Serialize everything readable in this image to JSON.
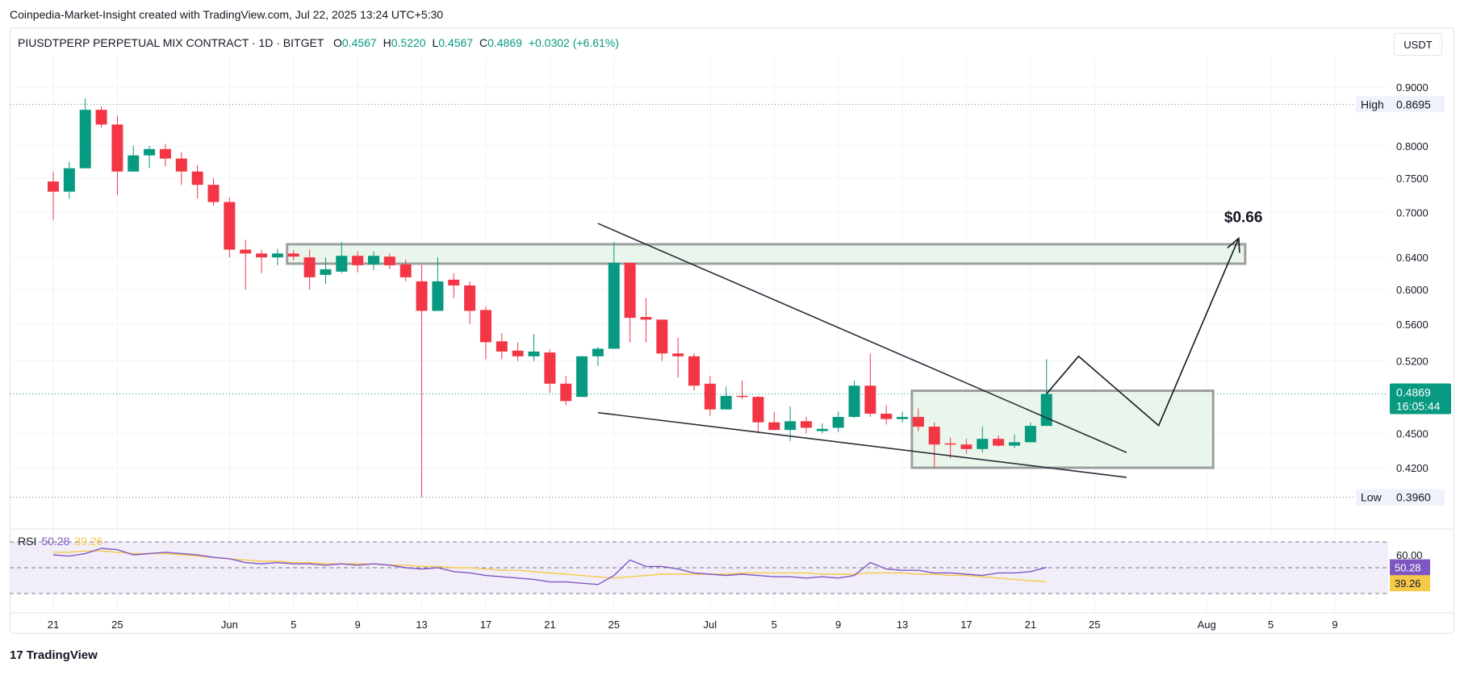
{
  "header": {
    "attribution": "Coinpedia-Market-Insight created with TradingView.com, Jul 22, 2025 13:24 UTC+5:30"
  },
  "legend": {
    "symbol": "PIUSDTPERP PERPETUAL MIX CONTRACT · 1D · BITGET",
    "o_label": "O",
    "o_value": "0.4567",
    "h_label": "H",
    "h_value": "0.5220",
    "l_label": "L",
    "l_value": "0.4567",
    "c_label": "C",
    "c_value": "0.4869",
    "change": "+0.0302 (+6.61%)"
  },
  "currency": "USDT",
  "rsi": {
    "label": "RSI",
    "value": "50.28",
    "ma_value": "39.26"
  },
  "footer": {
    "brand": "TradingView",
    "logo": "17"
  },
  "colors": {
    "up": "#089981",
    "down": "#f23645",
    "rsi": "#7e57c2",
    "rsi_ma": "#f7c948",
    "zone": "#e8f5e9",
    "zone_border": "#9e9e9e"
  },
  "chart_data": {
    "type": "candlestick",
    "interval": "1D",
    "ylim": [
      0.37,
      0.96
    ],
    "y_ticks": [
      "0.9000",
      "0.8000",
      "0.7500",
      "0.7000",
      "0.6400",
      "0.6000",
      "0.5600",
      "0.5200",
      "0.4500",
      "0.4200"
    ],
    "x_ticks": [
      "21",
      "25",
      "Jun",
      "5",
      "9",
      "13",
      "17",
      "21",
      "25",
      "Jul",
      "5",
      "9",
      "13",
      "17",
      "21",
      "25",
      "Aug",
      "5",
      "9"
    ],
    "x_tick_day_index": [
      0,
      4,
      11,
      15,
      19,
      23,
      27,
      31,
      35,
      41,
      45,
      49,
      53,
      57,
      61,
      65,
      72,
      76,
      80
    ],
    "candles": [
      {
        "o": 0.745,
        "h": 0.76,
        "l": 0.69,
        "c": 0.73
      },
      {
        "o": 0.73,
        "h": 0.775,
        "l": 0.72,
        "c": 0.765
      },
      {
        "o": 0.765,
        "h": 0.88,
        "l": 0.765,
        "c": 0.86
      },
      {
        "o": 0.86,
        "h": 0.866,
        "l": 0.83,
        "c": 0.835
      },
      {
        "o": 0.835,
        "h": 0.85,
        "l": 0.725,
        "c": 0.76
      },
      {
        "o": 0.76,
        "h": 0.8,
        "l": 0.76,
        "c": 0.785
      },
      {
        "o": 0.785,
        "h": 0.8,
        "l": 0.765,
        "c": 0.795
      },
      {
        "o": 0.795,
        "h": 0.803,
        "l": 0.768,
        "c": 0.78
      },
      {
        "o": 0.78,
        "h": 0.79,
        "l": 0.74,
        "c": 0.76
      },
      {
        "o": 0.76,
        "h": 0.77,
        "l": 0.72,
        "c": 0.74
      },
      {
        "o": 0.74,
        "h": 0.75,
        "l": 0.71,
        "c": 0.715
      },
      {
        "o": 0.715,
        "h": 0.722,
        "l": 0.64,
        "c": 0.65
      },
      {
        "o": 0.65,
        "h": 0.663,
        "l": 0.6,
        "c": 0.645
      },
      {
        "o": 0.645,
        "h": 0.65,
        "l": 0.62,
        "c": 0.64
      },
      {
        "o": 0.64,
        "h": 0.651,
        "l": 0.63,
        "c": 0.645
      },
      {
        "o": 0.645,
        "h": 0.65,
        "l": 0.636,
        "c": 0.641
      },
      {
        "o": 0.64,
        "h": 0.65,
        "l": 0.6,
        "c": 0.615
      },
      {
        "o": 0.618,
        "h": 0.64,
        "l": 0.607,
        "c": 0.625
      },
      {
        "o": 0.622,
        "h": 0.66,
        "l": 0.62,
        "c": 0.642
      },
      {
        "o": 0.642,
        "h": 0.648,
        "l": 0.621,
        "c": 0.63
      },
      {
        "o": 0.631,
        "h": 0.648,
        "l": 0.624,
        "c": 0.642
      },
      {
        "o": 0.641,
        "h": 0.645,
        "l": 0.625,
        "c": 0.63
      },
      {
        "o": 0.631,
        "h": 0.637,
        "l": 0.61,
        "c": 0.615
      },
      {
        "o": 0.61,
        "h": 0.63,
        "l": 0.396,
        "c": 0.575
      },
      {
        "o": 0.575,
        "h": 0.64,
        "l": 0.575,
        "c": 0.61
      },
      {
        "o": 0.612,
        "h": 0.62,
        "l": 0.59,
        "c": 0.605
      },
      {
        "o": 0.605,
        "h": 0.61,
        "l": 0.56,
        "c": 0.575
      },
      {
        "o": 0.576,
        "h": 0.58,
        "l": 0.522,
        "c": 0.54
      },
      {
        "o": 0.541,
        "h": 0.55,
        "l": 0.522,
        "c": 0.53
      },
      {
        "o": 0.531,
        "h": 0.54,
        "l": 0.52,
        "c": 0.525
      },
      {
        "o": 0.525,
        "h": 0.549,
        "l": 0.52,
        "c": 0.53
      },
      {
        "o": 0.529,
        "h": 0.532,
        "l": 0.488,
        "c": 0.497
      },
      {
        "o": 0.497,
        "h": 0.505,
        "l": 0.476,
        "c": 0.48
      },
      {
        "o": 0.484,
        "h": 0.525,
        "l": 0.484,
        "c": 0.525
      },
      {
        "o": 0.525,
        "h": 0.535,
        "l": 0.515,
        "c": 0.533
      },
      {
        "o": 0.533,
        "h": 0.66,
        "l": 0.533,
        "c": 0.633
      },
      {
        "o": 0.633,
        "h": 0.633,
        "l": 0.54,
        "c": 0.567
      },
      {
        "o": 0.568,
        "h": 0.59,
        "l": 0.54,
        "c": 0.565
      },
      {
        "o": 0.565,
        "h": 0.565,
        "l": 0.52,
        "c": 0.528
      },
      {
        "o": 0.528,
        "h": 0.545,
        "l": 0.503,
        "c": 0.525
      },
      {
        "o": 0.525,
        "h": 0.528,
        "l": 0.49,
        "c": 0.495
      },
      {
        "o": 0.497,
        "h": 0.505,
        "l": 0.466,
        "c": 0.472
      },
      {
        "o": 0.472,
        "h": 0.494,
        "l": 0.472,
        "c": 0.485
      },
      {
        "o": 0.485,
        "h": 0.5,
        "l": 0.482,
        "c": 0.484
      },
      {
        "o": 0.484,
        "h": 0.485,
        "l": 0.45,
        "c": 0.46
      },
      {
        "o": 0.46,
        "h": 0.47,
        "l": 0.453,
        "c": 0.453
      },
      {
        "o": 0.453,
        "h": 0.475,
        "l": 0.443,
        "c": 0.461
      },
      {
        "o": 0.461,
        "h": 0.465,
        "l": 0.45,
        "c": 0.455
      },
      {
        "o": 0.452,
        "h": 0.459,
        "l": 0.45,
        "c": 0.454
      },
      {
        "o": 0.455,
        "h": 0.47,
        "l": 0.451,
        "c": 0.465
      },
      {
        "o": 0.465,
        "h": 0.5,
        "l": 0.464,
        "c": 0.495
      },
      {
        "o": 0.495,
        "h": 0.528,
        "l": 0.465,
        "c": 0.468
      },
      {
        "o": 0.468,
        "h": 0.476,
        "l": 0.458,
        "c": 0.463
      },
      {
        "o": 0.463,
        "h": 0.47,
        "l": 0.46,
        "c": 0.465
      },
      {
        "o": 0.465,
        "h": 0.473,
        "l": 0.452,
        "c": 0.456
      },
      {
        "o": 0.456,
        "h": 0.46,
        "l": 0.42,
        "c": 0.44
      },
      {
        "o": 0.441,
        "h": 0.446,
        "l": 0.428,
        "c": 0.44
      },
      {
        "o": 0.44,
        "h": 0.445,
        "l": 0.432,
        "c": 0.436
      },
      {
        "o": 0.436,
        "h": 0.456,
        "l": 0.433,
        "c": 0.445
      },
      {
        "o": 0.445,
        "h": 0.448,
        "l": 0.438,
        "c": 0.439
      },
      {
        "o": 0.439,
        "h": 0.449,
        "l": 0.437,
        "c": 0.442
      },
      {
        "o": 0.442,
        "h": 0.46,
        "l": 0.442,
        "c": 0.4567
      },
      {
        "o": 0.4567,
        "h": 0.522,
        "l": 0.4567,
        "c": 0.4869
      }
    ],
    "zones": [
      {
        "y_low": 0.632,
        "y_high": 0.657,
        "from_day": 15,
        "to_day": 74
      },
      {
        "y_low": 0.42,
        "y_high": 0.49,
        "from_day": 54,
        "to_day": 72
      }
    ],
    "trendlines": [
      {
        "from": {
          "day": 34,
          "y": 0.685
        },
        "to": {
          "day": 67,
          "y": 0.433
        }
      },
      {
        "from": {
          "day": 34,
          "y": 0.469
        },
        "to": {
          "day": 67,
          "y": 0.412
        }
      }
    ],
    "projection": {
      "path": [
        {
          "day": 62,
          "y": 0.4869
        },
        {
          "day": 64,
          "y": 0.525
        },
        {
          "day": 69,
          "y": 0.457
        },
        {
          "day": 74,
          "y": 0.665
        }
      ],
      "target_label": "$0.66"
    },
    "high_line": {
      "label": "High",
      "value": "0.8695"
    },
    "low_line": {
      "label": "Low",
      "value": "0.3960"
    },
    "last_price": {
      "value": "0.4869",
      "countdown": "16:05:44"
    },
    "rsi_panel": {
      "levels": [
        70,
        50,
        30
      ],
      "ylim": [
        25,
        75
      ],
      "level_label": "60.00",
      "rsi_values": [
        60,
        59,
        61,
        65,
        64,
        60,
        61,
        62,
        61,
        60,
        58,
        57,
        54,
        53,
        54,
        53,
        53,
        52,
        53,
        52,
        53,
        52,
        50,
        49,
        50,
        47,
        46,
        44,
        43,
        42,
        41,
        39,
        39,
        38,
        37,
        44,
        56,
        51,
        51,
        49,
        46,
        45,
        44,
        45,
        44,
        43,
        43,
        42,
        43,
        42,
        44,
        54,
        49,
        48,
        48,
        46,
        46,
        45,
        44,
        46,
        46,
        47,
        50.28
      ],
      "ma_values": [
        62,
        62,
        63,
        63,
        62,
        61,
        61,
        61,
        60,
        59,
        58,
        57,
        56,
        55,
        55,
        54,
        54,
        53,
        53,
        53,
        53,
        52,
        52,
        51,
        51,
        50,
        50,
        49,
        48,
        48,
        47,
        46,
        45,
        44,
        43,
        42,
        43,
        44,
        45,
        45,
        45,
        45,
        45,
        46,
        46,
        46,
        46,
        46,
        45,
        45,
        45,
        46,
        46,
        46,
        45,
        45,
        44,
        44,
        43,
        42,
        41,
        40,
        39.26
      ]
    }
  }
}
